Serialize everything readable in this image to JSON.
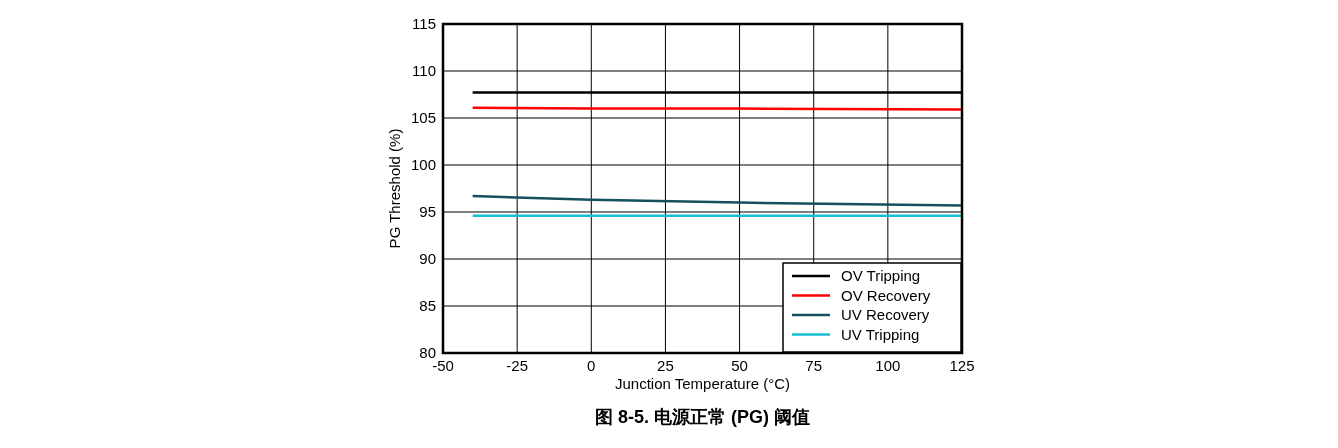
{
  "chart_data": {
    "type": "line",
    "title": "图 8-5. 电源正常 (PG) 阈值",
    "xlabel": "Junction Temperature (°C)",
    "ylabel": "PG Threshold (%)",
    "x": [
      -40,
      0,
      50,
      125
    ],
    "series": [
      {
        "name": "OV Tripping",
        "color": "#000000",
        "values": [
          107.7,
          107.7,
          107.7,
          107.7
        ]
      },
      {
        "name": "OV Recovery",
        "color": "#ff0000",
        "values": [
          106.1,
          106.0,
          106.0,
          105.9
        ]
      },
      {
        "name": "UV Recovery",
        "color": "#134f5c",
        "values": [
          96.7,
          96.3,
          96.0,
          95.7
        ]
      },
      {
        "name": "UV Tripping",
        "color": "#17becf",
        "values": [
          94.6,
          94.6,
          94.6,
          94.6
        ]
      }
    ],
    "xlim": [
      -50,
      125
    ],
    "ylim": [
      80,
      115
    ],
    "xticks": [
      -50,
      -25,
      0,
      25,
      50,
      75,
      100,
      125
    ],
    "yticks": [
      80,
      85,
      90,
      95,
      100,
      105,
      110,
      115
    ],
    "grid": true,
    "legend": "bottom right",
    "line_style": "solid",
    "marker": "none"
  }
}
